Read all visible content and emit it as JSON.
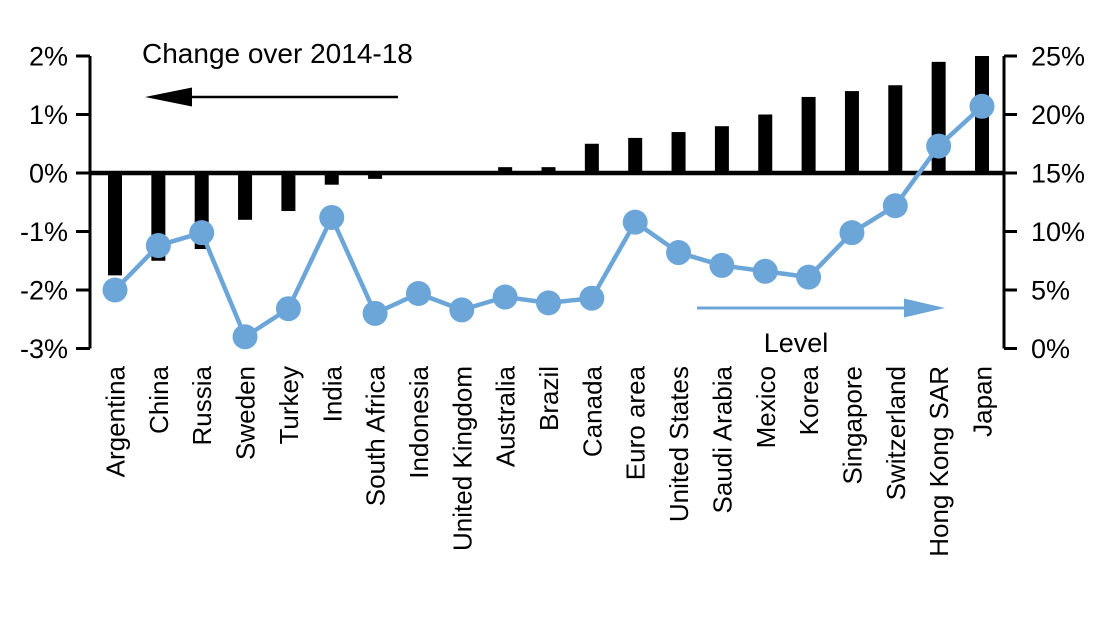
{
  "chart_data": {
    "type": "combo-bar-line",
    "title": "Change over 2014-18",
    "categories": [
      "Argentina",
      "China",
      "Russia",
      "Sweden",
      "Turkey",
      "India",
      "South Africa",
      "Indonesia",
      "United Kingdom",
      "Australia",
      "Brazil",
      "Canada",
      "Euro area",
      "United States",
      "Saudi Arabia",
      "Mexico",
      "Korea",
      "Singapore",
      "Switzerland",
      "Hong Kong SAR",
      "Japan"
    ],
    "series": [
      {
        "name": "Change over 2014-18",
        "type": "bar",
        "axis": "left",
        "color": "#000000",
        "unit": "percentage points",
        "values": [
          -1.75,
          -1.5,
          -1.3,
          -0.8,
          -0.65,
          -0.2,
          -0.1,
          0,
          0,
          0.1,
          0.1,
          0.5,
          0.6,
          0.7,
          0.8,
          1.0,
          1.3,
          1.4,
          1.5,
          1.9,
          2.0
        ]
      },
      {
        "name": "Level",
        "type": "line",
        "axis": "right",
        "color": "#6CA6D9",
        "unit": "%",
        "values": [
          5.0,
          8.8,
          9.9,
          1.0,
          3.4,
          11.2,
          3.0,
          4.7,
          3.3,
          4.4,
          3.9,
          4.3,
          10.8,
          8.2,
          7.1,
          6.6,
          6.1,
          9.9,
          12.2,
          17.3,
          20.7
        ]
      }
    ],
    "left_axis": {
      "min": -3,
      "max": 2,
      "ticks": [
        "2%",
        "1%",
        "0%",
        "-1%",
        "-2%",
        "-3%"
      ]
    },
    "right_axis": {
      "min": 0,
      "max": 25,
      "ticks": [
        "25%",
        "20%",
        "15%",
        "10%",
        "5%",
        "0%"
      ]
    },
    "annotations": {
      "left_arrow_label": "Change over 2014-18",
      "right_arrow_label": "Level",
      "left_arrow_direction": "left",
      "right_arrow_direction": "right"
    },
    "grid": "none",
    "legend": "none"
  }
}
